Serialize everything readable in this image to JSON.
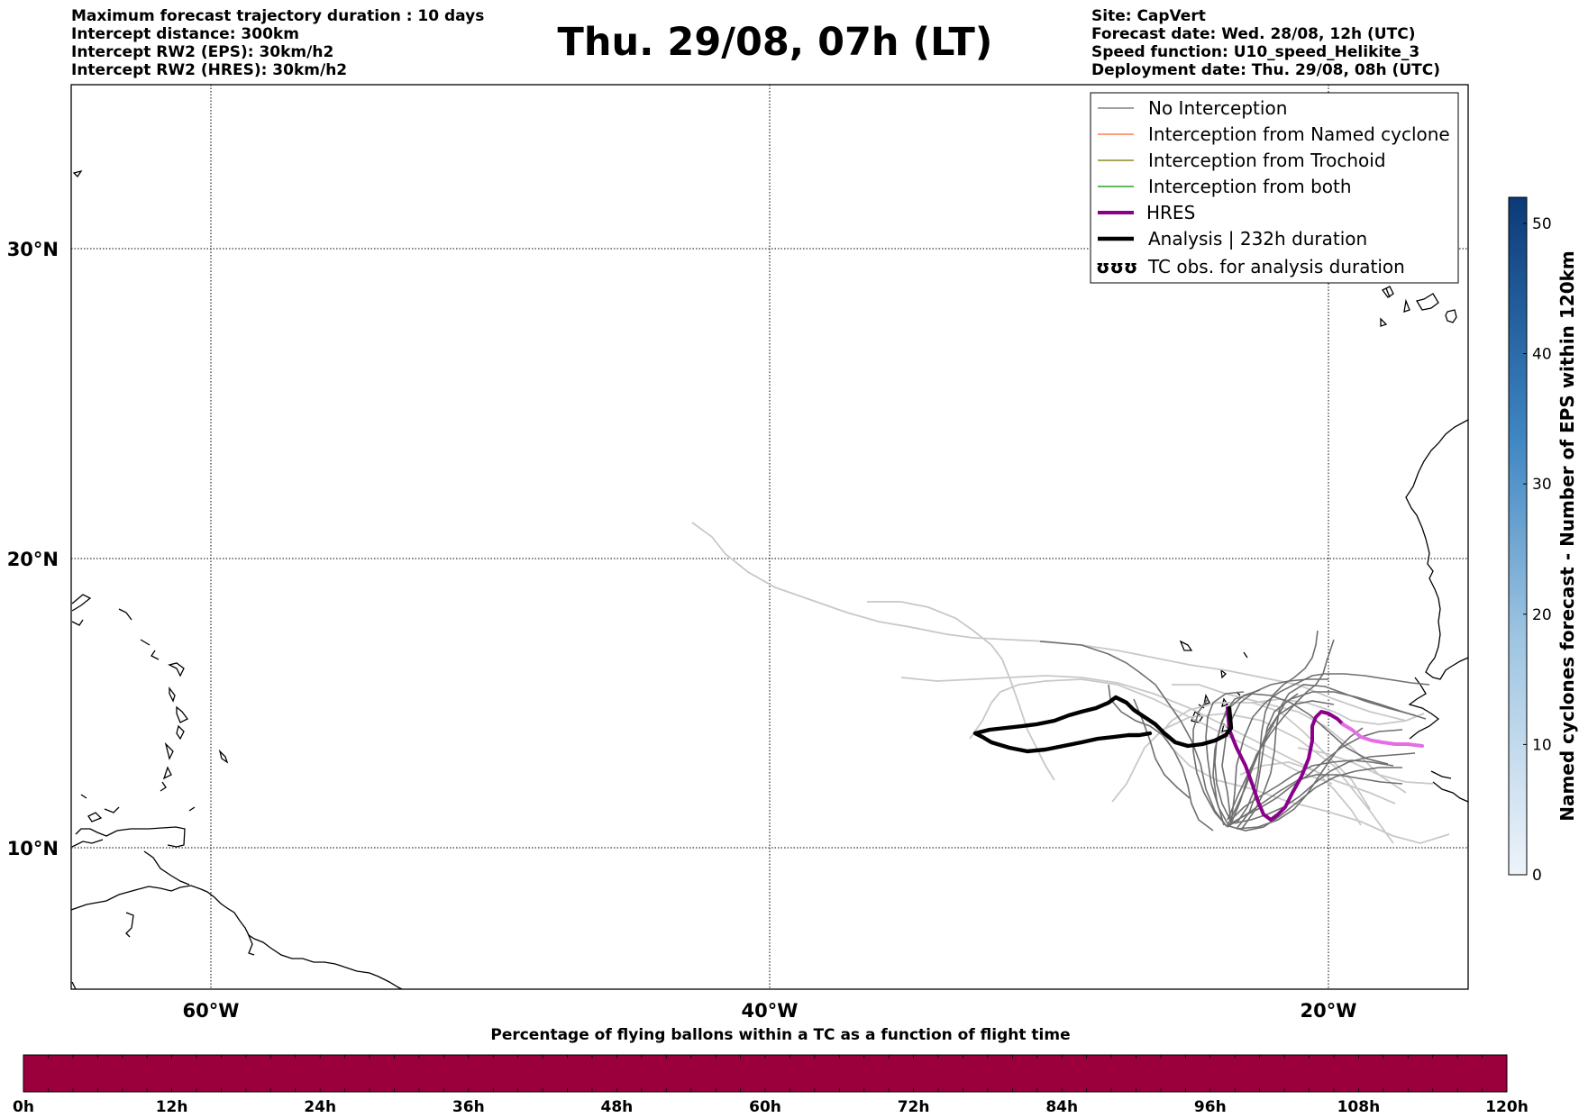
{
  "header": {
    "left_lines": [
      "Maximum forecast trajectory duration : 10 days",
      "Intercept distance: 300km",
      "Intercept RW2 (EPS):  30km/h2",
      "Intercept RW2 (HRES): 30km/h2"
    ],
    "title": "Thu. 29/08, 07h (LT)",
    "right_lines": [
      "Site: CapVert",
      "Forecast date: Wed. 28/08, 12h (UTC)",
      "Speed function: U10_speed_Helikite_3",
      "Deployment date: Thu. 29/08, 08h (UTC)"
    ]
  },
  "map": {
    "lat_labels": [
      {
        "label": "30°N",
        "value": 30
      },
      {
        "label": "20°N",
        "value": 20
      },
      {
        "label": "10°N",
        "value": 10
      }
    ],
    "lon_labels": [
      {
        "label": "60°W",
        "value": -60
      },
      {
        "label": "40°W",
        "value": -40
      },
      {
        "label": "20°W",
        "value": -20
      }
    ],
    "extent": {
      "lon_min": -65,
      "lon_max": -15,
      "lat_min": 5.5,
      "lat_max": 34.8
    }
  },
  "legend": {
    "items": [
      {
        "label": "No Interception",
        "color": "#808080",
        "style": "thin"
      },
      {
        "label": "Interception from Named cyclone",
        "color": "#ff7f50",
        "style": "thin"
      },
      {
        "label": "Interception from Trochoid",
        "color": "#8b8b23",
        "style": "thin"
      },
      {
        "label": "Interception from both",
        "color": "#2ca02c",
        "style": "thin"
      },
      {
        "label": "HRES",
        "color": "#8b008b",
        "style": "thick"
      },
      {
        "label": "Analysis | 232h duration",
        "color": "#000000",
        "style": "thick"
      },
      {
        "label": "TC obs. for analysis duration",
        "icon": "tc-symbol-icon",
        "symbol": "ʊʊʊ"
      }
    ]
  },
  "colorbar_right": {
    "label": "Named cyclones forecast - Number of EPS within 120km",
    "ticks": [
      "0",
      "10",
      "20",
      "30",
      "40",
      "50"
    ],
    "max": 52,
    "color_low": "#e6eef8",
    "color_high": "#0b3a78"
  },
  "colorbar_bottom": {
    "title": "Percentage of flying ballons within a TC as a function of flight time",
    "ticks": [
      "0h",
      "12h",
      "24h",
      "36h",
      "48h",
      "60h",
      "72h",
      "84h",
      "96h",
      "108h",
      "120h"
    ],
    "color": "#9c003c"
  }
}
